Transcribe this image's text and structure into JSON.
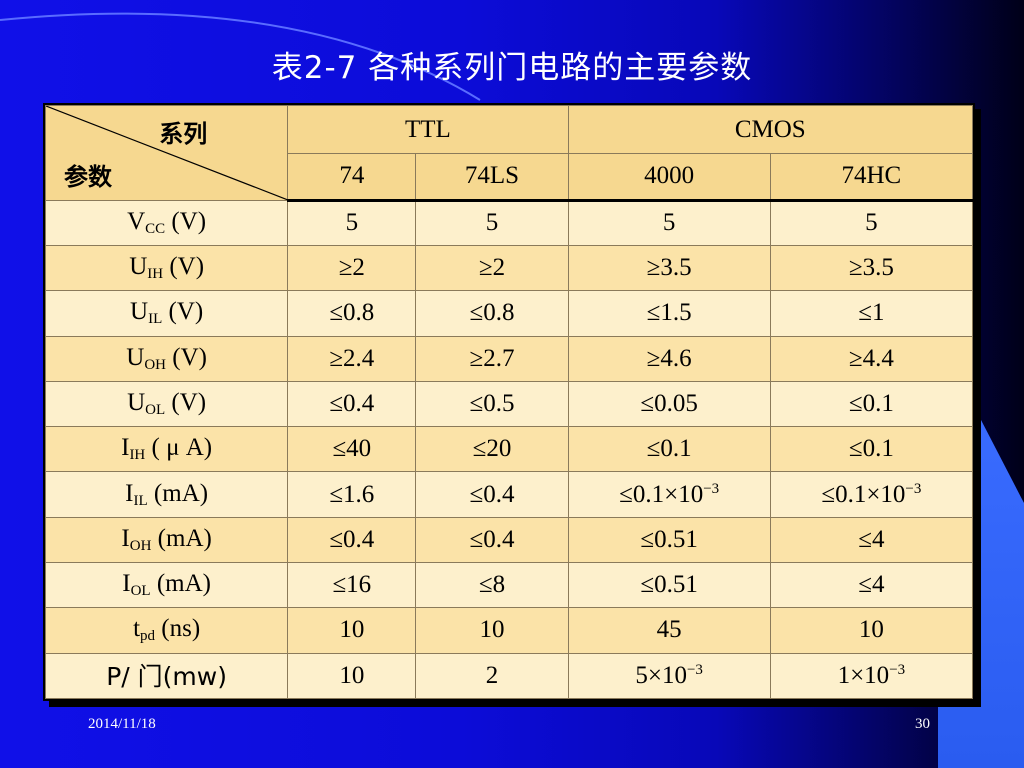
{
  "slide": {
    "title": "表2-7  各种系列门电路的主要参数",
    "footer_date": "2014/11/18",
    "page_number": "30"
  },
  "table": {
    "corner_top": "系列",
    "corner_bottom": "参数",
    "groups": [
      "TTL",
      "CMOS"
    ],
    "columns": [
      "74",
      "74LS",
      "4000",
      "74HC"
    ],
    "rows": [
      {
        "p": "V",
        "s": "CC",
        "u": " (V)",
        "v": [
          "5",
          "5",
          "5",
          "5"
        ]
      },
      {
        "p": "U",
        "s": "IH",
        "u": " (V)",
        "v": [
          "≥2",
          "≥2",
          "≥3.5",
          "≥3.5"
        ]
      },
      {
        "p": "U",
        "s": "IL",
        "u": " (V)",
        "v": [
          "≤0.8",
          "≤0.8",
          "≤1.5",
          "≤1"
        ]
      },
      {
        "p": "U",
        "s": "OH",
        "u": " (V)",
        "v": [
          "≥2.4",
          "≥2.7",
          "≥4.6",
          "≥4.4"
        ]
      },
      {
        "p": "U",
        "s": "OL",
        "u": " (V)",
        "v": [
          "≤0.4",
          "≤0.5",
          "≤0.05",
          "≤0.1"
        ]
      },
      {
        "p": "I",
        "s": "IH",
        "u": " ( μ A)",
        "v": [
          "≤40",
          "≤20",
          "≤0.1",
          "≤0.1"
        ]
      },
      {
        "p": "I",
        "s": "IL",
        "u": " (mA)",
        "v": [
          "≤1.6",
          "≤0.4",
          "≤0.1×10",
          "≤0.1×10"
        ],
        "sup": [
          "",
          "",
          "−3",
          "−3"
        ]
      },
      {
        "p": "I",
        "s": "OH",
        "u": " (mA)",
        "v": [
          "≤0.4",
          "≤0.4",
          "≤0.51",
          "≤4"
        ]
      },
      {
        "p": "I",
        "s": "OL",
        "u": " (mA)",
        "v": [
          "≤16",
          "≤8",
          "≤0.51",
          "≤4"
        ]
      },
      {
        "p": "t",
        "s": "pd",
        "u": " (ns)",
        "v": [
          "10",
          "10",
          "45",
          "10"
        ]
      },
      {
        "p": "P/ 门(mw)",
        "s": "",
        "u": "",
        "v": [
          "10",
          "2",
          "5×10",
          "1×10"
        ],
        "sup": [
          "",
          "",
          "−3",
          "−3"
        ]
      }
    ]
  }
}
